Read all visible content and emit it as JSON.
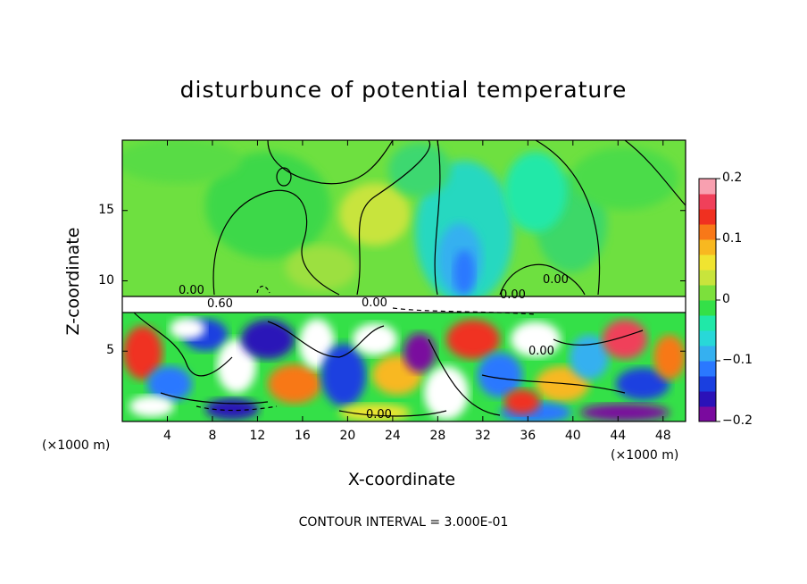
{
  "chart_data": {
    "type": "heatmap",
    "title": "disturbunce of potential temperature",
    "xlabel": "X-coordinate",
    "ylabel": "Z-coordinate",
    "x_unit_label": "(×1000 m)",
    "x_unit_label_left": "(×1000 m)",
    "x_ticks": [
      4,
      8,
      12,
      16,
      20,
      24,
      28,
      32,
      36,
      40,
      44,
      48
    ],
    "y_ticks": [
      5,
      10,
      15
    ],
    "xlim": [
      0,
      50
    ],
    "ylim": [
      0,
      20
    ],
    "colorbar": {
      "ticks": [
        "0.2",
        "0.1",
        "0",
        "−0.1",
        "−0.2"
      ],
      "range": [
        -0.2,
        0.2
      ],
      "colors": [
        "#7a0a9e",
        "#2b12b8",
        "#1a3fe0",
        "#2a78ff",
        "#35b0f0",
        "#28d8d8",
        "#20e8a8",
        "#34e048",
        "#7ce03c",
        "#c8e43c",
        "#f0e430",
        "#f8b820",
        "#f87818",
        "#f03020",
        "#f0405a",
        "#f8a0b0"
      ]
    },
    "contour_labels": [
      "0.00",
      "0.60",
      "0.00",
      "0.00",
      "0.00",
      "0.00",
      "0.00"
    ],
    "contour_interval": "CONTOUR INTERVAL = 3.000E-01"
  }
}
